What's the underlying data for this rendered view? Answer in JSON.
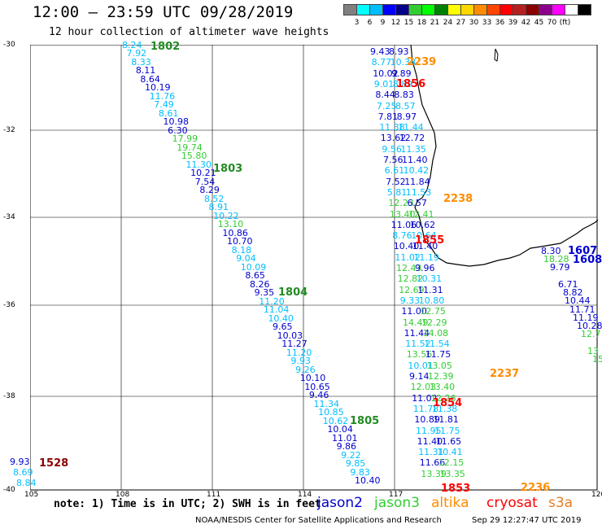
{
  "title": "12:00 – 23:59 UTC 09/28/2019",
  "subtitle": "12 hour collection of altimeter wave heights",
  "scale": {
    "colors": [
      "#808080",
      "#00ffff",
      "#00bfff",
      "#0000ff",
      "#00008b",
      "#32cd32",
      "#00ff00",
      "#008000",
      "#ffff00",
      "#ffd700",
      "#ff8c00",
      "#ff4500",
      "#ff0000",
      "#b22222",
      "#8b0000",
      "#8b008b",
      "#ff00ff",
      "#ffffff",
      "#000000"
    ],
    "labels": [
      "3",
      "6",
      "9",
      "12",
      "15",
      "18",
      "21",
      "24",
      "27",
      "30",
      "33",
      "36",
      "39",
      "42",
      "45",
      "70",
      "(ft)"
    ]
  },
  "lat_labels": [
    "-30",
    "-32",
    "-34",
    "-36",
    "-38",
    "-40"
  ],
  "lon_labels": [
    "105",
    "108",
    "111",
    "114",
    "117",
    "120"
  ],
  "colors": {
    "jason2": "#0000cd",
    "jason3": "#32cd32",
    "altika": "#ff8c00",
    "cryosat": "#ff0000",
    "s3a": "#e67e22",
    "cyan": "#00bfff",
    "green": "#228b22",
    "coast": "#000000",
    "grid": "#000000"
  },
  "track_times": [
    {
      "text": "1802",
      "color": "#228b22"
    },
    {
      "text": "1803",
      "color": "#228b22"
    },
    {
      "text": "1804",
      "color": "#228b22"
    },
    {
      "text": "1805",
      "color": "#228b22"
    },
    {
      "text": "2239",
      "color": "#ff8c00"
    },
    {
      "text": "1856",
      "color": "#ff0000"
    },
    {
      "text": "2238",
      "color": "#ff8c00"
    },
    {
      "text": "1855",
      "color": "#ff0000"
    },
    {
      "text": "2237",
      "color": "#ff8c00"
    },
    {
      "text": "1854",
      "color": "#ff0000"
    },
    {
      "text": "1853",
      "color": "#ff0000"
    },
    {
      "text": "2236",
      "color": "#ff8c00"
    },
    {
      "text": "1607",
      "color": "#0000cd"
    },
    {
      "text": "1608",
      "color": "#0000cd"
    },
    {
      "text": "1528",
      "color": "#8b0000"
    }
  ],
  "tracks": {
    "t1": [
      "8.24",
      "7.92",
      "8.33",
      "8.11",
      "8.64",
      "10.19",
      "11.76",
      "7.49",
      "8.61",
      "10.98",
      "6.30",
      "17.99",
      "19.74",
      "15.80",
      "11.30",
      "10.21",
      "7.54",
      "8.29",
      "8.52",
      "8.91",
      "10.22",
      "13.10",
      "10.86",
      "10.70",
      "8.18",
      "9.04",
      "10.09",
      "8.65",
      "8.26",
      "9.35",
      "11.20",
      "11.04",
      "10.40",
      "9.65",
      "10.03",
      "11.27",
      "11.20",
      "9.93",
      "9.26",
      "10.10",
      "10.65",
      "9.46",
      "11.34",
      "10.85",
      "10.62",
      "10.04",
      "11.01",
      "9.86",
      "9.22",
      "9.85",
      "9.83",
      "10.40"
    ],
    "t2": [
      "9.43",
      "8.93",
      "8.77",
      "10.38",
      "10.02",
      "9.89",
      "9.01",
      "8.89",
      "8.44",
      "8.83",
      "7.25",
      "8.57",
      "7.81",
      "8.97",
      "11.38",
      "11.44",
      "13.62",
      "12.72",
      "9.56",
      "11.35",
      "7.56",
      "11.40",
      "6.61",
      "10.42",
      "7.52",
      "11.84",
      "5.81",
      "11.53",
      "12.23",
      "6.57",
      "13.40",
      "12.41",
      "11.06",
      "10.62",
      "8.76",
      "10.64",
      "10.40",
      "11.40",
      "11.02",
      "11.19",
      "12.43",
      "9.96",
      "12.82",
      "10.31",
      "12.69",
      "11.31",
      "9.33",
      "10.80",
      "11.00",
      "12.75",
      "14.49",
      "12.29",
      "11.44",
      "14.08",
      "11.52",
      "11.54",
      "13.56",
      "11.75",
      "10.01",
      "13.05",
      "9.14",
      "12.39",
      "12.03",
      "13.40",
      "11.02",
      "12.26",
      "11.78",
      "11.38",
      "10.89",
      "11.81",
      "11.95",
      "11.75",
      "11.40",
      "11.65",
      "11.31",
      "10.41",
      "11.66",
      "12.15",
      "13.39",
      "13.35"
    ],
    "t3": [
      "8.30",
      "18.28",
      "9.79",
      "6.71",
      "8.82",
      "10.44",
      "11.71",
      "11.19",
      "10.28",
      "12.7",
      "13",
      "15"
    ],
    "t4": [
      "9.93",
      "8.69",
      "8.84"
    ]
  },
  "legend": {
    "jason2": "jason2",
    "jason3": "jason3",
    "altika": "altika",
    "cryosat": "cryosat",
    "s3a": "s3a"
  },
  "footer": {
    "note": "note: 1) Time is in UTC; 2) SWH is in feet",
    "credit": "NOAA/NESDIS Center for Satellite Applications and Research",
    "stamp": "Sep 29 12:27:47 UTC 2019"
  }
}
